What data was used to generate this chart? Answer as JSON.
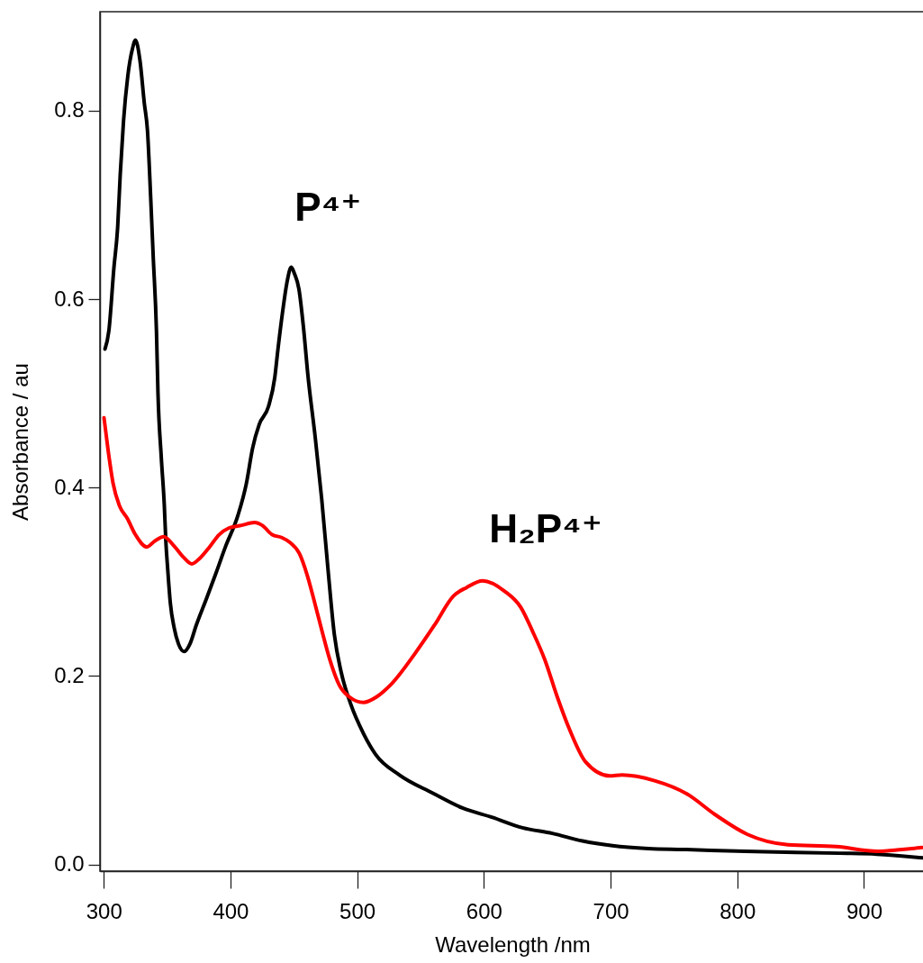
{
  "chart_data": {
    "type": "line",
    "xlabel": "Wavelength /nm",
    "ylabel": "Absorbance / au",
    "xlim": [
      297,
      948
    ],
    "ylim": [
      -0.007,
      0.905
    ],
    "xticks": [
      300,
      400,
      500,
      600,
      700,
      800,
      900
    ],
    "yticks": [
      {
        "value": 0,
        "label": "0.0"
      },
      0.2,
      0.4,
      0.6,
      0.8
    ],
    "series": [
      {
        "name": "P⁴⁺",
        "color": "#000000",
        "x": [
          301,
          304,
          308,
          311,
          313,
          315.6,
          319,
          322.7,
          325,
          328.6,
          332,
          334.5,
          337,
          339,
          341.6,
          342.8,
          345.4,
          347.8,
          349,
          350.5,
          352.5,
          355.6,
          359,
          363.5,
          368,
          373,
          381,
          388.5,
          396,
          406,
          412.5,
          417.5,
          422.7,
          430,
          435,
          437.5,
          441,
          444.5,
          448,
          450.5,
          454,
          457.7,
          461,
          467,
          472,
          477,
          482,
          487.4,
          495,
          505,
          514.5,
          533.4,
          559.4,
          583.1,
          606.8,
          630.5,
          654.1,
          677.8,
          701.5,
          729.9,
          757,
          806,
          880.5,
          910,
          946.5
        ],
        "values": [
          0.547,
          0.566,
          0.633,
          0.677,
          0.732,
          0.789,
          0.837,
          0.866,
          0.875,
          0.853,
          0.808,
          0.779,
          0.709,
          0.646,
          0.566,
          0.5,
          0.432,
          0.381,
          0.343,
          0.313,
          0.278,
          0.251,
          0.234,
          0.226,
          0.234,
          0.254,
          0.282,
          0.309,
          0.337,
          0.371,
          0.404,
          0.442,
          0.467,
          0.486,
          0.517,
          0.547,
          0.585,
          0.617,
          0.634,
          0.627,
          0.611,
          0.569,
          0.521,
          0.452,
          0.388,
          0.313,
          0.244,
          0.204,
          0.17,
          0.139,
          0.117,
          0.095,
          0.076,
          0.06,
          0.05,
          0.039,
          0.033,
          0.025,
          0.02,
          0.017,
          0.016,
          0.014,
          0.012,
          0.011,
          0.007
        ]
      },
      {
        "name": "H₂P⁴⁺",
        "color": "#ff0000",
        "x": [
          300.2,
          303.5,
          307.3,
          312.3,
          318.7,
          325,
          334,
          340,
          347.4,
          355.5,
          363,
          369.5,
          375.8,
          383.5,
          391,
          398.6,
          408.8,
          419,
          425,
          432.9,
          440.5,
          446.8,
          454.4,
          460.8,
          467,
          472.2,
          478.5,
          486,
          493.7,
          505,
          515.4,
          528,
          545.7,
          561,
          576,
          586.4,
          599,
          616.4,
          629.1,
          638.6,
          648.2,
          657.9,
          667.4,
          680.2,
          699.4,
          709,
          734.7,
          760.2,
          782.5,
          808,
          840,
          878.3,
          910.6,
          930,
          945.8
        ],
        "values": [
          0.474,
          0.439,
          0.405,
          0.381,
          0.367,
          0.35,
          0.337,
          0.343,
          0.348,
          0.338,
          0.326,
          0.319,
          0.325,
          0.337,
          0.35,
          0.357,
          0.36,
          0.363,
          0.36,
          0.35,
          0.347,
          0.342,
          0.33,
          0.306,
          0.275,
          0.248,
          0.217,
          0.19,
          0.178,
          0.172,
          0.178,
          0.193,
          0.224,
          0.254,
          0.285,
          0.294,
          0.301,
          0.29,
          0.273,
          0.247,
          0.217,
          0.178,
          0.144,
          0.109,
          0.094,
          0.095,
          0.089,
          0.075,
          0.053,
          0.032,
          0.021,
          0.019,
          0.014,
          0.016,
          0.018
        ]
      }
    ]
  }
}
